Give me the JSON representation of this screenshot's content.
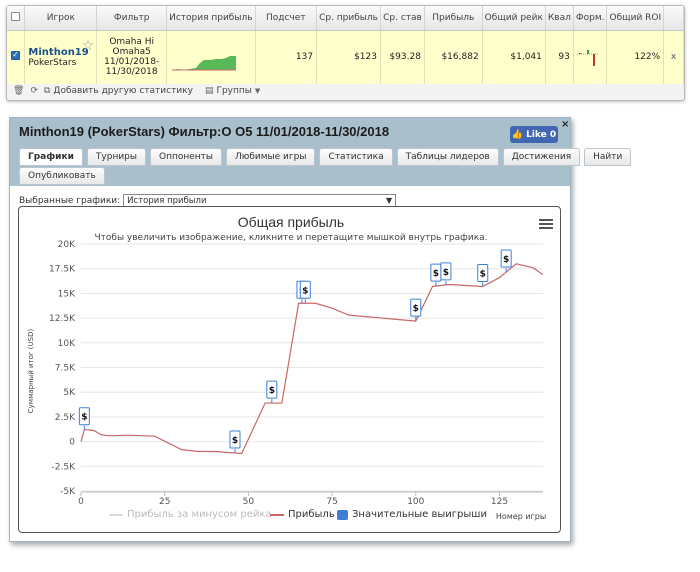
{
  "stats_table": {
    "headers": [
      "",
      "Игрок",
      "Фильтр",
      "История прибыль",
      "Подсчет",
      "Ср. прибыль",
      "Ср. став",
      "Прибыль",
      "Общий рейк",
      "Квал",
      "Форм.",
      "Общий ROI",
      ""
    ],
    "row": {
      "checked": true,
      "player": "Minthon19",
      "site": "PokerStars",
      "filter_lines": [
        "Omaha Hi",
        "Omaha5",
        "11/01/2018-",
        "11/30/2018"
      ],
      "count": "137",
      "avg_profit": "$123",
      "avg_stake": "$93.28",
      "profit": "$16,882",
      "total_rake": "$1,041",
      "qual": "93",
      "total_roi": "122%",
      "close": "x"
    }
  },
  "toolbar": {
    "add_stats_label": "Добавить другую статистику",
    "groups_label": "Группы"
  },
  "window": {
    "title": "Minthon19 (PokerStars) Фильтр:O O5 11/01/2018-11/30/2018",
    "like_label": "Like 0",
    "close_label": "×",
    "tabs_row1": [
      "Графики",
      "Турниры",
      "Оппоненты",
      "Любимые игры",
      "Статистика",
      "Таблицы лидеров",
      "Достижения",
      "Найти"
    ],
    "tabs_row2": [
      "Опубликовать"
    ],
    "select_label": "Выбранные графики:",
    "select_value": "История прибыли"
  },
  "colors": {
    "profit_line": "#c96767",
    "rake_line": "#d9d9d9",
    "big_win": "#3e7fd6",
    "spark": "#57b957"
  },
  "chart_data": {
    "type": "line",
    "title": "Общая прибыль",
    "subtitle": "Чтобы увеличить изображение, кликните и перетащите мышкой внутрь графика.",
    "ylabel": "Суммарный итог (USD)",
    "xlabel": "Номер игры",
    "x_ticks": [
      0,
      25,
      50,
      75,
      100,
      125
    ],
    "y_ticks": [
      20000,
      17500,
      15000,
      12500,
      10000,
      7500,
      5000,
      2500,
      0,
      -2500,
      -5000
    ],
    "y_tick_labels": [
      "20K",
      "17.5K",
      "15K",
      "12.5K",
      "10K",
      "7.5K",
      "5K",
      "2.5K",
      "0",
      "-2.5K",
      "-5K"
    ],
    "xlim": [
      0,
      138
    ],
    "ylim": [
      -5000,
      20000
    ],
    "series": [
      {
        "name": "Прибыль",
        "x": [
          0,
          1,
          2,
          4,
          6,
          8,
          10,
          14,
          18,
          22,
          30,
          35,
          40,
          48,
          55,
          60,
          65,
          70,
          75,
          80,
          90,
          100,
          105,
          110,
          120,
          125,
          130,
          135,
          138
        ],
        "y": [
          0,
          1200,
          1200,
          1100,
          700,
          600,
          600,
          650,
          600,
          550,
          -800,
          -1000,
          -1000,
          -1200,
          3900,
          3900,
          14000,
          14000,
          13500,
          12800,
          12500,
          12200,
          15700,
          15900,
          15700,
          16600,
          18000,
          17600,
          16900
        ]
      },
      {
        "name": "Прибыль за минусом рейка",
        "x": [],
        "y": []
      },
      {
        "name": "Значительные выигрыши",
        "x": [
          1,
          46,
          57,
          66,
          67,
          100,
          106,
          109,
          120,
          127
        ]
      }
    ],
    "big_win_marker": "$"
  }
}
